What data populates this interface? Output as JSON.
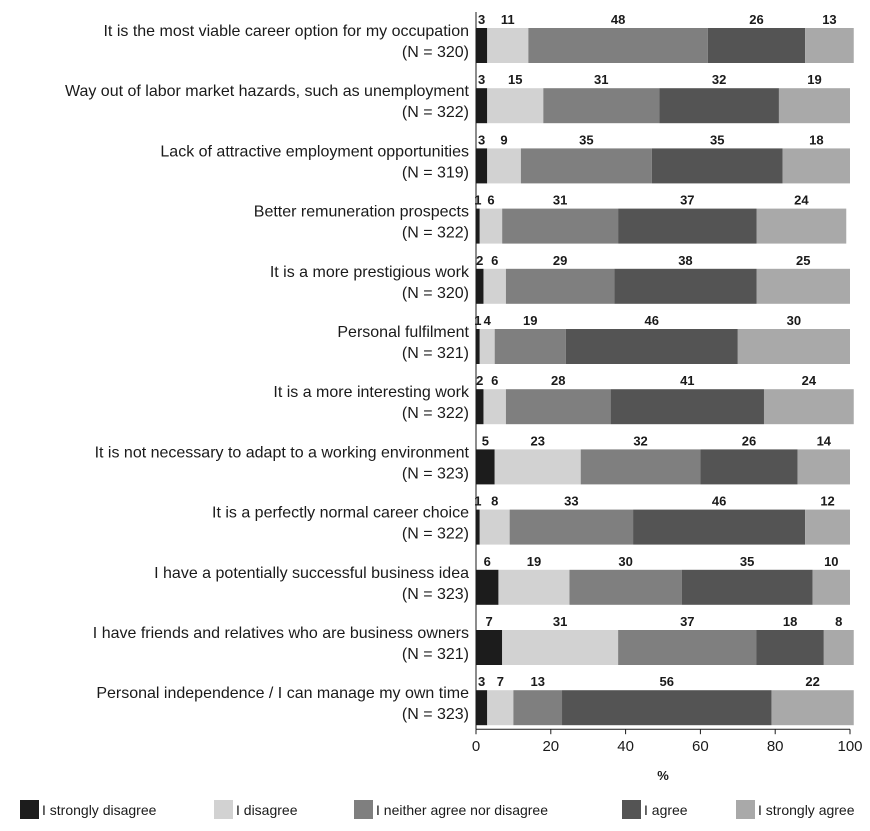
{
  "chart_data": {
    "type": "bar",
    "orientation": "horizontal",
    "stacked": true,
    "xlabel": "%",
    "xlim": [
      0,
      100
    ],
    "xticks": [
      "0",
      "20",
      "40",
      "60",
      "80",
      "100"
    ],
    "categories": [
      [
        "It is the most viable career option for my occupation",
        "(N = 320)"
      ],
      [
        "Way out of labor market hazards, such as unemployment",
        "(N = 322)"
      ],
      [
        "Lack of attractive employment opportunities",
        "(N = 319)"
      ],
      [
        "Better remuneration prospects",
        "(N = 322)"
      ],
      [
        "It is a more prestigious work",
        "(N = 320)"
      ],
      [
        "Personal fulfilment",
        "(N = 321)"
      ],
      [
        "It is a more interesting work",
        "(N = 322)"
      ],
      [
        "It is not necessary to adapt to a working environment",
        "(N = 323)"
      ],
      [
        "It is a perfectly normal career choice",
        "(N = 322)"
      ],
      [
        "I have a potentially successful business idea",
        "(N = 323)"
      ],
      [
        "I have friends and relatives who are business owners",
        "(N = 321)"
      ],
      [
        "Personal independence / I can manage my own time",
        "(N = 323)"
      ]
    ],
    "series": [
      {
        "name": "I strongly disagree",
        "color": "#1c1c1c",
        "values": [
          3,
          3,
          3,
          1,
          2,
          1,
          2,
          5,
          1,
          6,
          7,
          3
        ]
      },
      {
        "name": "I disagree",
        "color": "#d2d2d2",
        "values": [
          11,
          15,
          9,
          6,
          6,
          4,
          6,
          23,
          8,
          19,
          31,
          7
        ]
      },
      {
        "name": "I neither agree nor disagree",
        "color": "#7f7f7f",
        "values": [
          48,
          31,
          35,
          31,
          29,
          19,
          28,
          32,
          33,
          30,
          37,
          13
        ]
      },
      {
        "name": "I agree",
        "color": "#545454",
        "values": [
          26,
          32,
          35,
          37,
          38,
          46,
          41,
          26,
          46,
          35,
          18,
          56
        ]
      },
      {
        "name": "I strongly agree",
        "color": "#a9a9a9",
        "values": [
          13,
          19,
          18,
          24,
          25,
          30,
          24,
          14,
          12,
          10,
          8,
          22
        ]
      }
    ],
    "legend_position": "bottom",
    "grid": false
  }
}
